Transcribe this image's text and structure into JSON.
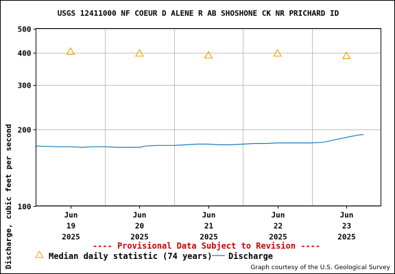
{
  "page": {
    "title": "USGS 12411000 NF COEUR D ALENE R AB SHOSHONE CK NR PRICHARD ID",
    "provisional_note": "---- Provisional Data Subject to Revision ----",
    "credit": "Graph courtesy of the U.S. Geological Survey"
  },
  "legend": {
    "median_label": "Median daily statistic (74 years)",
    "discharge_label": "Discharge"
  },
  "colors": {
    "discharge": "#1a7ab8",
    "median": "#e8a000",
    "grid": "#bfbfbf",
    "provisional": "#cc0000"
  },
  "chart_data": {
    "type": "line",
    "title": "USGS 12411000 NF COEUR D ALENE R AB SHOSHONE CK NR PRICHARD ID",
    "xlabel": "",
    "ylabel": "Discharge, cubic feet per second",
    "y_scale": "log",
    "ylim": [
      100,
      500
    ],
    "y_ticks": [
      100,
      200,
      300,
      400,
      500
    ],
    "xlim": [
      "2025-06-18T12:00",
      "2025-06-23T12:00"
    ],
    "x_ticks": [
      {
        "month": "Jun",
        "day": "19",
        "year": "2025",
        "at": "2025-06-19T00:00"
      },
      {
        "month": "Jun",
        "day": "20",
        "year": "2025",
        "at": "2025-06-20T00:00"
      },
      {
        "month": "Jun",
        "day": "21",
        "year": "2025",
        "at": "2025-06-21T00:00"
      },
      {
        "month": "Jun",
        "day": "22",
        "year": "2025",
        "at": "2025-06-22T00:00"
      },
      {
        "month": "Jun",
        "day": "23",
        "year": "2025",
        "at": "2025-06-23T00:00"
      }
    ],
    "grid": true,
    "series": [
      {
        "name": "Discharge",
        "kind": "line",
        "points": [
          [
            "2025-06-18T12:00",
            172
          ],
          [
            "2025-06-18T20:00",
            171
          ],
          [
            "2025-06-19T00:00",
            171
          ],
          [
            "2025-06-19T04:00",
            170
          ],
          [
            "2025-06-19T08:00",
            171
          ],
          [
            "2025-06-19T12:00",
            171
          ],
          [
            "2025-06-19T16:00",
            170
          ],
          [
            "2025-06-19T20:00",
            170
          ],
          [
            "2025-06-20T00:00",
            170
          ],
          [
            "2025-06-20T02:00",
            172
          ],
          [
            "2025-06-20T06:00",
            173
          ],
          [
            "2025-06-20T12:00",
            173
          ],
          [
            "2025-06-20T16:00",
            174
          ],
          [
            "2025-06-20T20:00",
            175
          ],
          [
            "2025-06-21T00:00",
            175
          ],
          [
            "2025-06-21T04:00",
            174
          ],
          [
            "2025-06-21T08:00",
            174
          ],
          [
            "2025-06-21T12:00",
            175
          ],
          [
            "2025-06-21T16:00",
            176
          ],
          [
            "2025-06-21T20:00",
            176
          ],
          [
            "2025-06-22T00:00",
            177
          ],
          [
            "2025-06-22T04:00",
            177
          ],
          [
            "2025-06-22T08:00",
            177
          ],
          [
            "2025-06-22T12:00",
            177
          ],
          [
            "2025-06-22T16:00",
            178
          ],
          [
            "2025-06-22T20:00",
            182
          ],
          [
            "2025-06-23T00:00",
            186
          ],
          [
            "2025-06-23T04:00",
            190
          ],
          [
            "2025-06-23T06:00",
            191
          ]
        ]
      },
      {
        "name": "Median daily statistic (74 years)",
        "kind": "marker",
        "points": [
          [
            "2025-06-19T00:00",
            406
          ],
          [
            "2025-06-20T00:00",
            400
          ],
          [
            "2025-06-21T00:00",
            393
          ],
          [
            "2025-06-22T00:00",
            400
          ],
          [
            "2025-06-23T00:00",
            391
          ]
        ]
      }
    ]
  }
}
